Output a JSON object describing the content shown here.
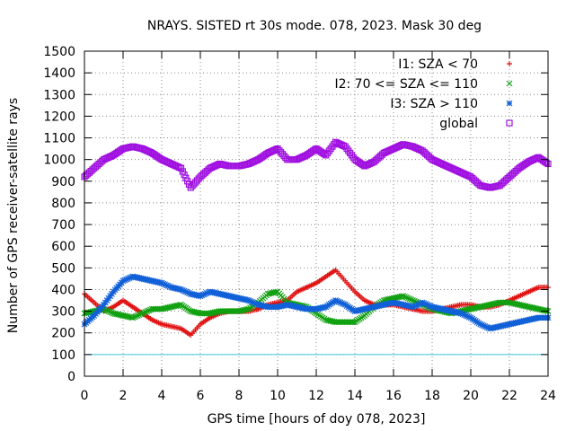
{
  "chart_data": {
    "type": "scatter",
    "title": "NRAYS. SISTED rt 30s mode. 078, 2023. Mask 30 deg",
    "xlabel": "GPS time [hours of doy 078, 2023]",
    "ylabel": "Number of GPS receiver-satellite rays",
    "xlim": [
      0,
      24
    ],
    "ylim": [
      0,
      1500
    ],
    "x_ticks": [
      0,
      2,
      4,
      6,
      8,
      10,
      12,
      14,
      16,
      18,
      20,
      22,
      24
    ],
    "y_ticks": [
      0,
      100,
      200,
      300,
      400,
      500,
      600,
      700,
      800,
      900,
      1000,
      1100,
      1200,
      1300,
      1400,
      1500
    ],
    "grid": true,
    "legend_position": "top-right",
    "reference_line": {
      "y": 100,
      "color": "#40c8d8"
    },
    "series": [
      {
        "name": "I1: SZA < 70",
        "marker": "+",
        "color": "#e01010",
        "x": [
          0,
          0.5,
          1,
          1.5,
          2,
          2.5,
          3,
          3.5,
          4,
          4.5,
          5,
          5.5,
          6,
          6.5,
          7,
          7.5,
          8,
          8.5,
          9,
          9.5,
          10,
          10.5,
          11,
          11.5,
          12,
          12.5,
          13,
          13.5,
          14,
          14.5,
          15,
          15.5,
          16,
          16.5,
          17,
          17.5,
          18,
          18.5,
          19,
          19.5,
          20,
          20.5,
          21,
          21.5,
          22,
          22.5,
          23,
          23.5,
          24
        ],
        "values": [
          380,
          340,
          300,
          320,
          350,
          320,
          290,
          260,
          240,
          230,
          220,
          190,
          240,
          270,
          290,
          300,
          300,
          300,
          310,
          330,
          340,
          350,
          390,
          410,
          430,
          460,
          490,
          440,
          390,
          350,
          330,
          330,
          330,
          320,
          310,
          300,
          300,
          310,
          320,
          330,
          330,
          320,
          320,
          330,
          350,
          370,
          390,
          410,
          410
        ]
      },
      {
        "name": "I2: 70 <= SZA <= 110",
        "marker": "x",
        "color": "#10a010",
        "x": [
          0,
          0.5,
          1,
          1.5,
          2,
          2.5,
          3,
          3.5,
          4,
          4.5,
          5,
          5.5,
          6,
          6.5,
          7,
          7.5,
          8,
          8.5,
          9,
          9.5,
          10,
          10.5,
          11,
          11.5,
          12,
          12.5,
          13,
          13.5,
          14,
          14.5,
          15,
          15.5,
          16,
          16.5,
          17,
          17.5,
          18,
          18.5,
          19,
          19.5,
          20,
          20.5,
          21,
          21.5,
          22,
          22.5,
          23,
          23.5,
          24
        ],
        "values": [
          290,
          300,
          310,
          290,
          280,
          270,
          290,
          310,
          310,
          320,
          330,
          300,
          290,
          290,
          300,
          300,
          300,
          310,
          340,
          380,
          390,
          340,
          330,
          320,
          290,
          260,
          250,
          250,
          250,
          280,
          320,
          350,
          360,
          370,
          350,
          330,
          310,
          300,
          290,
          300,
          310,
          320,
          330,
          340,
          340,
          330,
          320,
          310,
          300
        ]
      },
      {
        "name": "I3: SZA > 110",
        "marker": "*",
        "color": "#1060d8",
        "x": [
          0,
          0.5,
          1,
          1.5,
          2,
          2.5,
          3,
          3.5,
          4,
          4.5,
          5,
          5.5,
          6,
          6.5,
          7,
          7.5,
          8,
          8.5,
          9,
          9.5,
          10,
          10.5,
          11,
          11.5,
          12,
          12.5,
          13,
          13.5,
          14,
          14.5,
          15,
          15.5,
          16,
          16.5,
          17,
          17.5,
          18,
          18.5,
          19,
          19.5,
          20,
          20.5,
          21,
          21.5,
          22,
          22.5,
          23,
          23.5,
          24
        ],
        "values": [
          240,
          280,
          330,
          390,
          440,
          460,
          450,
          440,
          430,
          410,
          400,
          380,
          370,
          390,
          380,
          370,
          360,
          350,
          330,
          320,
          320,
          330,
          320,
          310,
          310,
          320,
          350,
          330,
          300,
          310,
          320,
          330,
          340,
          330,
          320,
          340,
          320,
          310,
          300,
          290,
          270,
          240,
          220,
          230,
          240,
          250,
          260,
          270,
          270
        ]
      },
      {
        "name": "global",
        "marker": "square",
        "color": "#a010e0",
        "x": [
          0,
          0.5,
          1,
          1.5,
          2,
          2.5,
          3,
          3.5,
          4,
          4.5,
          5,
          5.5,
          6,
          6.5,
          7,
          7.5,
          8,
          8.5,
          9,
          9.5,
          10,
          10.5,
          11,
          11.5,
          12,
          12.5,
          13,
          13.5,
          14,
          14.5,
          15,
          15.5,
          16,
          16.5,
          17,
          17.5,
          18,
          18.5,
          19,
          19.5,
          20,
          20.5,
          21,
          21.5,
          22,
          22.5,
          23,
          23.5,
          24
        ],
        "values": [
          920,
          960,
          1000,
          1020,
          1050,
          1060,
          1050,
          1030,
          1000,
          980,
          960,
          870,
          920,
          960,
          980,
          970,
          970,
          980,
          1000,
          1030,
          1050,
          1000,
          1000,
          1020,
          1050,
          1020,
          1080,
          1060,
          1000,
          970,
          990,
          1030,
          1050,
          1070,
          1060,
          1040,
          1000,
          980,
          960,
          940,
          920,
          880,
          870,
          880,
          920,
          960,
          990,
          1010,
          980
        ]
      }
    ]
  }
}
